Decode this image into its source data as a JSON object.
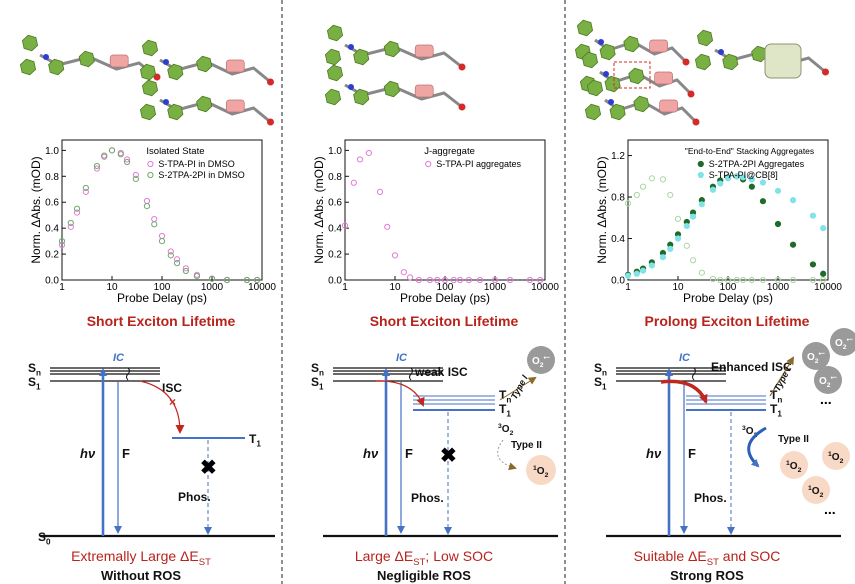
{
  "chart_data": [
    {
      "type": "scatter",
      "xscale": "log",
      "xlabel": "Probe Delay (ps)",
      "ylabel": "Norm. ΔAbs. (mOD)",
      "legend_title": "Isolated State",
      "legend": "upper right",
      "x": [
        1,
        1.5,
        2,
        3,
        5,
        7,
        10,
        15,
        20,
        30,
        50,
        70,
        100,
        150,
        200,
        300,
        500,
        1000,
        2000,
        5000,
        8000
      ],
      "xlim": [
        1,
        10000
      ],
      "xticks": [
        1,
        10,
        100,
        1000,
        10000
      ],
      "ylim": [
        0,
        1.08
      ],
      "yticks": [
        {
          "value": 0,
          "label": "0.0"
        },
        {
          "value": 0.2,
          "label": "0.2"
        },
        {
          "value": 0.4,
          "label": "0.4"
        },
        {
          "value": 0.6,
          "label": "0.6"
        },
        {
          "value": 0.8,
          "label": "0.8"
        },
        {
          "value": 1,
          "label": "1.0"
        }
      ],
      "series": [
        {
          "name": "S-TPA-PI in DMSO",
          "color": "#e27ad6",
          "filled": false,
          "values": [
            0.27,
            0.41,
            0.52,
            0.68,
            0.86,
            0.95,
            1.0,
            0.98,
            0.93,
            0.81,
            0.61,
            0.47,
            0.34,
            0.22,
            0.16,
            0.09,
            0.04,
            0.01,
            0,
            0,
            0
          ]
        },
        {
          "name": "S-2TPA-2PI in DMSO",
          "color": "#6fa86a",
          "filled": false,
          "values": [
            0.3,
            0.44,
            0.55,
            0.71,
            0.88,
            0.96,
            1.0,
            0.97,
            0.91,
            0.78,
            0.57,
            0.43,
            0.3,
            0.19,
            0.13,
            0.07,
            0.03,
            0.01,
            0,
            0,
            0
          ]
        }
      ]
    },
    {
      "type": "scatter",
      "xscale": "log",
      "xlabel": "Probe Delay (ps)",
      "ylabel": "Norm. ΔAbs. (mOD)",
      "legend_title": "J-aggregate",
      "legend": "upper right",
      "x": [
        1,
        1.5,
        2,
        3,
        5,
        7,
        10,
        15,
        20,
        30,
        50,
        70,
        100,
        150,
        200,
        300,
        500,
        1000,
        2000,
        5000,
        8000
      ],
      "xlim": [
        1,
        10000
      ],
      "xticks": [
        1,
        10,
        100,
        1000,
        10000
      ],
      "ylim": [
        0,
        1.08
      ],
      "yticks": [
        {
          "value": 0,
          "label": "0.0"
        },
        {
          "value": 0.2,
          "label": "0.2"
        },
        {
          "value": 0.4,
          "label": "0.4"
        },
        {
          "value": 0.6,
          "label": "0.6"
        },
        {
          "value": 0.8,
          "label": "0.8"
        },
        {
          "value": 1,
          "label": "1.0"
        }
      ],
      "series": [
        {
          "name": "S-TPA-PI aggregates",
          "color": "#e27ad6",
          "filled": false,
          "values": [
            0.42,
            0.75,
            0.93,
            0.98,
            0.68,
            0.41,
            0.19,
            0.06,
            0.02,
            0,
            0,
            0,
            0,
            0,
            0,
            0,
            0,
            0,
            0,
            0,
            0
          ]
        }
      ]
    },
    {
      "type": "scatter",
      "xscale": "log",
      "xlabel": "Probe Delay (ps)",
      "ylabel": "Norm. ΔAbs. (mOD)",
      "legend_title": "\"End-to-End\" Stacking Aggregates",
      "legend": "upper right",
      "x": [
        1,
        1.5,
        2,
        3,
        5,
        7,
        10,
        15,
        20,
        30,
        50,
        70,
        100,
        150,
        200,
        300,
        500,
        1000,
        2000,
        5000,
        8000
      ],
      "xlim": [
        1,
        10000
      ],
      "xticks": [
        1,
        10,
        100,
        1000,
        10000
      ],
      "ylim": [
        0,
        1.35
      ],
      "yticks": [
        {
          "value": 0,
          "label": "0.0"
        },
        {
          "value": 0.4,
          "label": "0.4"
        },
        {
          "value": 0.8,
          "label": "0.8"
        },
        {
          "value": 1.2,
          "label": "1.2"
        }
      ],
      "series": [
        {
          "color": "#a8d8a0",
          "filled": false,
          "values": [
            0.74,
            0.82,
            0.9,
            0.98,
            0.97,
            0.82,
            0.59,
            0.33,
            0.19,
            0.07,
            0.01,
            0,
            0,
            0,
            0,
            0,
            0,
            0,
            0,
            0,
            0
          ]
        },
        {
          "name": "S-2TPA-2PI Aggregates",
          "color": "#1f6b2a",
          "filled": true,
          "values": [
            0.05,
            0.08,
            0.11,
            0.17,
            0.26,
            0.34,
            0.44,
            0.56,
            0.65,
            0.77,
            0.9,
            0.96,
            0.99,
            1.0,
            0.97,
            0.9,
            0.76,
            0.54,
            0.34,
            0.15,
            0.06
          ]
        },
        {
          "name": "S-TPA-PI@CB[8]",
          "color": "#7fe3e8",
          "filled": true,
          "values": [
            0.04,
            0.06,
            0.09,
            0.14,
            0.22,
            0.3,
            0.4,
            0.52,
            0.61,
            0.73,
            0.87,
            0.93,
            0.98,
            1.0,
            0.99,
            0.97,
            0.94,
            0.86,
            0.77,
            0.62,
            0.5
          ]
        }
      ]
    }
  ],
  "panels": [
    {
      "caption": "Short Exciton Lifetime",
      "labels": {
        "sn": {
          "text": "S",
          "sub": "n"
        },
        "s1": {
          "text": "S",
          "sub": "1"
        },
        "s0": {
          "text": "S",
          "sub": "0"
        },
        "ic": {
          "text": "IC"
        },
        "isc": {
          "text": "ISC"
        },
        "t1": {
          "text": "T",
          "sub": "1"
        },
        "hv": {
          "text": "hν"
        },
        "f": {
          "text": "F"
        },
        "phos": {
          "text": "Phos."
        }
      },
      "summary": {
        "line1": {
          "text": "Extremally Large ΔE",
          "sub": "ST"
        },
        "line2": {
          "text": "Without ROS"
        }
      }
    },
    {
      "caption": "Short Exciton Lifetime",
      "labels": {
        "sn": {
          "text": "S",
          "sub": "n"
        },
        "s1": {
          "text": "S",
          "sub": "1"
        },
        "ic": {
          "text": "IC"
        },
        "isc": {
          "text": "weak ISC"
        },
        "tn": {
          "text": "T",
          "sub": "n"
        },
        "t1": {
          "text": "T",
          "sub": "1"
        },
        "hv": {
          "text": "hν"
        },
        "f": {
          "text": "F"
        },
        "phos": {
          "text": "Phos."
        },
        "o2rad": {
          "text": "O",
          "sub": "2",
          "sup": "•−"
        },
        "type1": {
          "text": "Type I"
        },
        "o2t": {
          "pre": "3",
          "text": "O",
          "sub": "2"
        },
        "type2": {
          "text": "Type II"
        },
        "o2s": {
          "pre": "1",
          "text": "O",
          "sub": "2"
        }
      },
      "summary": {
        "line1": {
          "text": "Large ΔE",
          "sub": "ST",
          "after": "; Low SOC"
        },
        "line2": {
          "text": "Negligible ROS"
        }
      }
    },
    {
      "caption": "Prolong Exciton Lifetime",
      "labels": {
        "sn": {
          "text": "S",
          "sub": "n"
        },
        "s1": {
          "text": "S",
          "sub": "1"
        },
        "ic": {
          "text": "IC"
        },
        "isc": {
          "text": "Enhanced ISC"
        },
        "tn": {
          "text": "T",
          "sub": "n"
        },
        "t1": {
          "text": "T",
          "sub": "1"
        },
        "hv": {
          "text": "hν"
        },
        "f": {
          "text": "F"
        },
        "phos": {
          "text": "Phos."
        },
        "type1": {
          "text": "Type I"
        },
        "o2t": {
          "pre": "3",
          "text": "O",
          "sub": "2"
        },
        "type2": {
          "text": "Type II"
        },
        "o2rad": [
          {
            "text": "O",
            "sub": "2",
            "sup": "•−"
          },
          {
            "text": "O",
            "sub": "2",
            "sup": "•−"
          },
          {
            "text": "O",
            "sub": "2",
            "sup": "•−"
          }
        ],
        "o2s": [
          {
            "pre": "1",
            "text": "O",
            "sub": "2"
          },
          {
            "pre": "1",
            "text": "O",
            "sub": "2"
          },
          {
            "pre": "1",
            "text": "O",
            "sub": "2"
          }
        ],
        "dots": [
          "...",
          "..."
        ]
      },
      "summary": {
        "line1": {
          "text": "Suitable ΔE",
          "sub": "ST",
          "after": " and SOC"
        },
        "line2": {
          "text": "Strong ROS"
        }
      }
    }
  ]
}
